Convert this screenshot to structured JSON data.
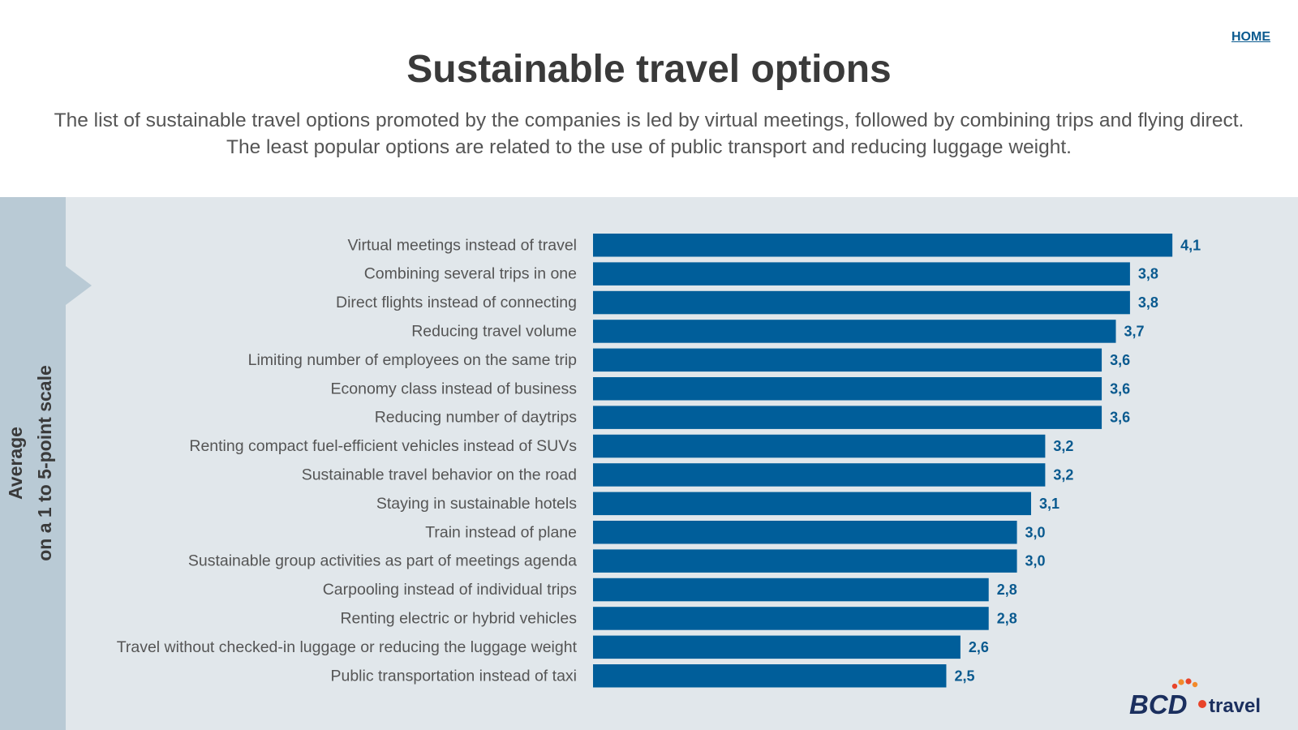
{
  "header": {
    "home_link": "HOME",
    "title": "Sustainable travel options",
    "subtitle": "The list of sustainable travel options promoted by the companies is led by virtual meetings, followed by combining trips and flying direct. The least popular options are related to the use of public transport and reducing luggage weight."
  },
  "side_label": {
    "line1": "Average",
    "line2": "on a 1 to 5-point scale"
  },
  "colors": {
    "bar": "#005e9a",
    "value_text": "#0a5a8f",
    "panel": "#e1e7eb",
    "side_band": "#b9cad5"
  },
  "chart_data": {
    "type": "bar",
    "orientation": "horizontal",
    "title": "Sustainable travel options",
    "xlabel": "",
    "ylabel": "Average on a 1 to 5-point scale",
    "xlim": [
      0,
      4.3
    ],
    "grid": false,
    "categories": [
      "Virtual meetings instead of travel",
      "Combining several trips in one",
      "Direct flights instead of connecting",
      "Reducing travel volume",
      "Limiting number of employees on the same trip",
      "Economy class instead of business",
      "Reducing number of daytrips",
      "Renting compact fuel-efficient vehicles instead of SUVs",
      "Sustainable travel behavior on the road",
      "Staying in sustainable hotels",
      "Train instead of plane",
      "Sustainable group activities as part of meetings agenda",
      "Carpooling instead of individual trips",
      "Renting electric or hybrid vehicles",
      "Travel without checked-in luggage or reducing the luggage weight",
      "Public transportation instead of taxi"
    ],
    "values": [
      4.1,
      3.8,
      3.8,
      3.7,
      3.6,
      3.6,
      3.6,
      3.2,
      3.2,
      3.1,
      3.0,
      3.0,
      2.8,
      2.8,
      2.6,
      2.5
    ],
    "value_labels": [
      "4,1",
      "3,8",
      "3,8",
      "3,7",
      "3,6",
      "3,6",
      "3,6",
      "3,2",
      "3,2",
      "3,1",
      "3,0",
      "3,0",
      "2,8",
      "2,8",
      "2,6",
      "2,5"
    ]
  },
  "logo": {
    "text_main": "BCD",
    "text_sub": "travel"
  }
}
